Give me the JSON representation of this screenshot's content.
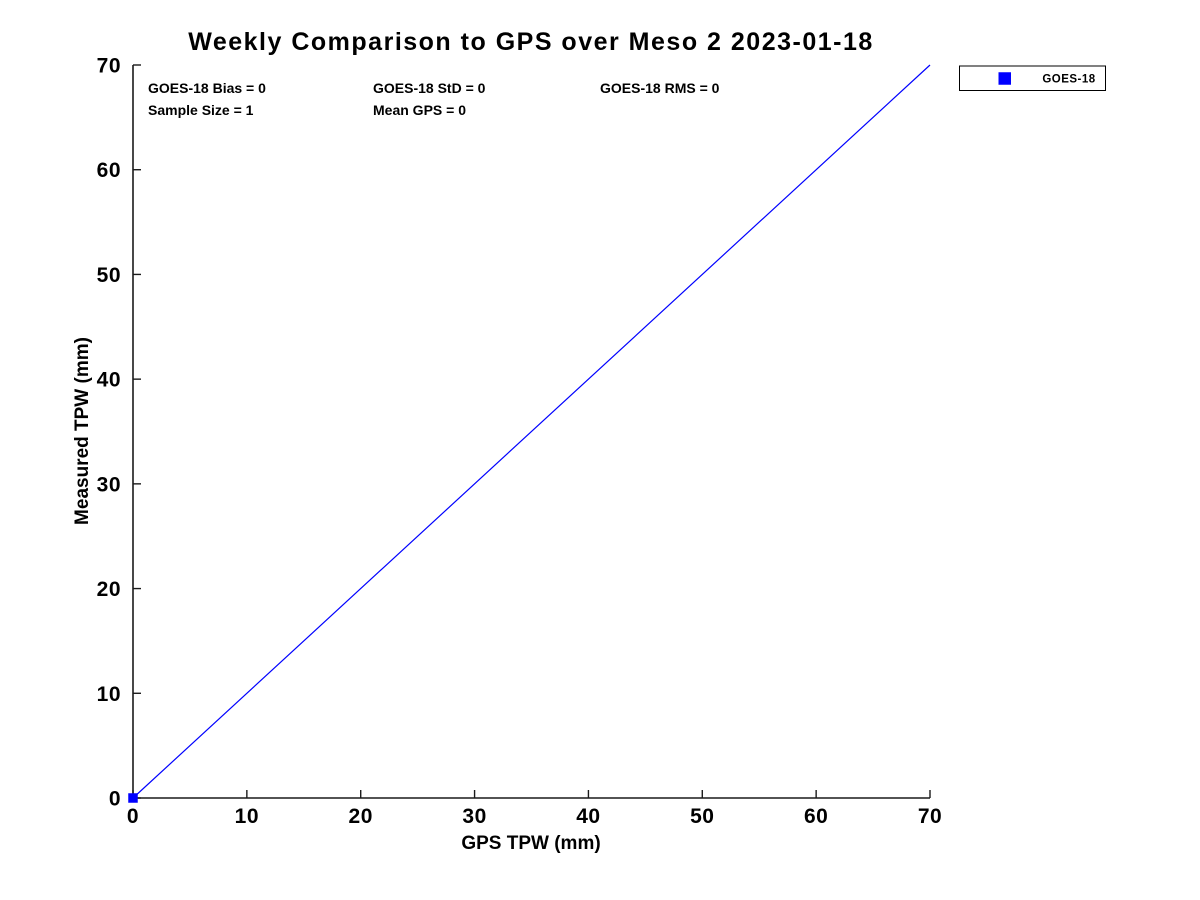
{
  "chart_data": {
    "type": "scatter",
    "title": "Weekly Comparison to GPS over Meso 2 2023-01-18",
    "xlabel": "GPS TPW (mm)",
    "ylabel": "Measured TPW (mm)",
    "xlim": [
      0,
      70
    ],
    "ylim": [
      0,
      70
    ],
    "xticks": [
      0,
      10,
      20,
      30,
      40,
      50,
      60,
      70
    ],
    "yticks": [
      0,
      10,
      20,
      30,
      40,
      50,
      60,
      70
    ],
    "grid": false,
    "box": false,
    "tick_direction": "in",
    "colors": {
      "series": "#0000ff",
      "axis": "#1a1a1a",
      "text": "#000000",
      "background": "#ffffff"
    },
    "legend": {
      "position": "outside-top-right",
      "entries": [
        {
          "label": "GOES-18",
          "marker": "square",
          "color": "#0000ff"
        }
      ]
    },
    "series": [
      {
        "name": "GOES-18",
        "type": "scatter",
        "marker": "square",
        "color": "#0000ff",
        "points": [
          [
            0,
            0
          ]
        ]
      },
      {
        "name": "identity-line",
        "type": "line",
        "color": "#0000ff",
        "width": 1.2,
        "points": [
          [
            0,
            0
          ],
          [
            70,
            70
          ]
        ]
      }
    ],
    "annotations": [
      {
        "text": "GOES-18 Bias = 0",
        "x": 1.32,
        "y": 67.33
      },
      {
        "text": "GOES-18 StD = 0",
        "x": 21.08,
        "y": 67.33
      },
      {
        "text": "GOES-18 RMS = 0",
        "x": 41.02,
        "y": 67.33
      },
      {
        "text": "Sample Size = 1",
        "x": 1.32,
        "y": 65.23
      },
      {
        "text": "Mean GPS = 0",
        "x": 21.08,
        "y": 65.23
      }
    ]
  }
}
